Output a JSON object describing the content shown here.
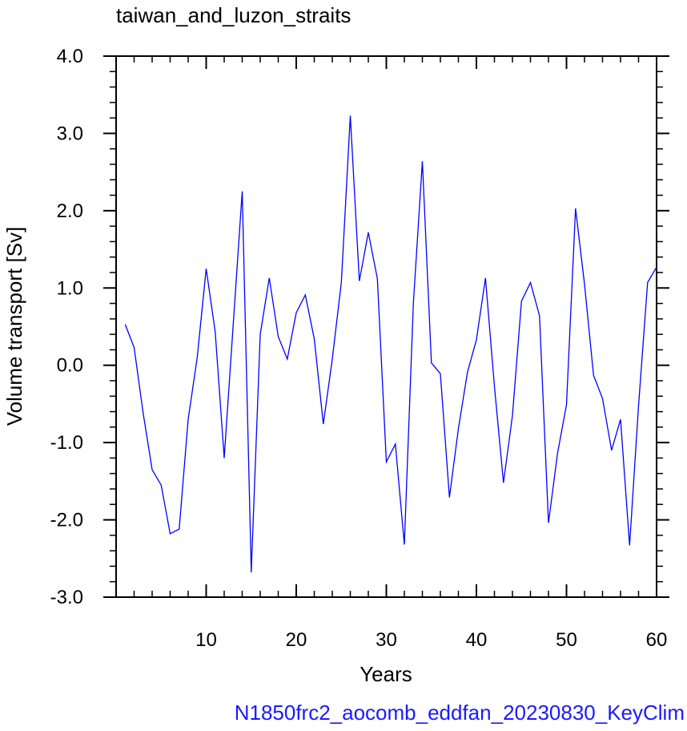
{
  "chart_data": {
    "type": "line",
    "title": "taiwan_and_luzon_straits",
    "xlabel": "Years",
    "ylabel": "Volume transport [Sv]",
    "footer": "N1850frc2_aocomb_eddfan_20230830_KeyClim",
    "xlim": [
      0,
      60
    ],
    "ylim": [
      -3.0,
      4.0
    ],
    "x_ticks": [
      10,
      20,
      30,
      40,
      50,
      60
    ],
    "x_tick_labels": [
      "10",
      "20",
      "30",
      "40",
      "50",
      "60"
    ],
    "y_ticks": [
      -3.0,
      -2.0,
      -1.0,
      0.0,
      1.0,
      2.0,
      3.0,
      4.0
    ],
    "y_tick_labels": [
      "-3.0",
      "-2.0",
      "-1.0",
      "0.0",
      "1.0",
      "2.0",
      "3.0",
      "4.0"
    ],
    "grid": false,
    "series": [
      {
        "color": "#0000ff",
        "x": [
          1,
          2,
          3,
          4,
          5,
          6,
          7,
          8,
          9,
          10,
          11,
          12,
          13,
          14,
          15,
          16,
          17,
          18,
          19,
          20,
          21,
          22,
          23,
          24,
          25,
          26,
          27,
          28,
          29,
          30,
          31,
          32,
          33,
          34,
          35,
          36,
          37,
          38,
          39,
          40,
          41,
          42,
          43,
          44,
          45,
          46,
          47,
          48,
          49,
          50,
          51,
          52,
          53,
          54,
          55,
          56,
          57,
          58,
          59,
          60
        ],
        "values": [
          0.53,
          0.23,
          -0.62,
          -1.35,
          -1.55,
          -2.18,
          -2.12,
          -0.7,
          0.1,
          1.25,
          0.43,
          -1.2,
          0.53,
          2.25,
          -2.68,
          0.4,
          1.13,
          0.37,
          0.08,
          0.68,
          0.91,
          0.34,
          -0.76,
          0.08,
          1.07,
          3.23,
          1.09,
          1.72,
          1.12,
          -1.25,
          -1.02,
          -2.32,
          0.81,
          2.64,
          0.03,
          -0.11,
          -1.71,
          -0.82,
          -0.09,
          0.33,
          1.13,
          -0.27,
          -1.52,
          -0.65,
          0.83,
          1.07,
          0.64,
          -2.04,
          -1.14,
          -0.51,
          2.03,
          1.05,
          -0.13,
          -0.43,
          -1.1,
          -0.7,
          -2.33,
          -0.52,
          1.07,
          1.27
        ]
      }
    ]
  }
}
